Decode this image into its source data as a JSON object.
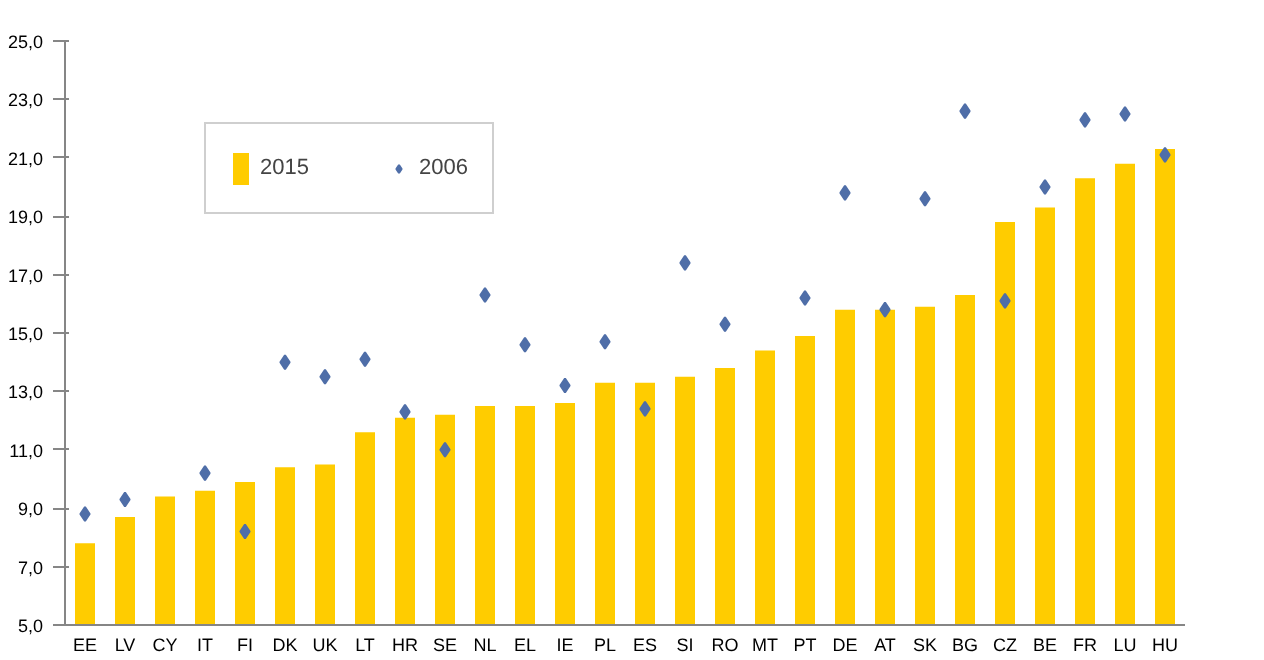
{
  "chart_data": {
    "type": "bar",
    "categories": [
      "EE",
      "LV",
      "CY",
      "IT",
      "FI",
      "DK",
      "UK",
      "LT",
      "HR",
      "SE",
      "NL",
      "EL",
      "IE",
      "PL",
      "ES",
      "SI",
      "RO",
      "MT",
      "PT",
      "DE",
      "AT",
      "SK",
      "BG",
      "CZ",
      "BE",
      "FR",
      "LU",
      "HU"
    ],
    "series": [
      {
        "name": "2015",
        "color": "#ffcc00",
        "values": [
          7.8,
          8.7,
          9.4,
          9.6,
          9.9,
          10.4,
          10.5,
          11.6,
          12.1,
          12.2,
          12.5,
          12.5,
          12.6,
          13.3,
          13.3,
          13.5,
          13.8,
          14.4,
          14.9,
          15.8,
          15.8,
          15.9,
          16.3,
          18.8,
          19.3,
          20.3,
          20.8,
          21.3
        ]
      },
      {
        "name": "2006",
        "type": "scatter",
        "marker": "diamond",
        "color": "#4f6ea8",
        "values": [
          8.8,
          9.3,
          null,
          10.2,
          8.2,
          14.0,
          13.5,
          14.1,
          12.3,
          11.0,
          16.3,
          14.6,
          13.2,
          14.7,
          12.4,
          17.4,
          15.3,
          null,
          16.2,
          19.8,
          15.8,
          19.6,
          22.6,
          16.1,
          20.0,
          22.3,
          22.5,
          21.1
        ]
      }
    ],
    "ylim": [
      5,
      25
    ],
    "yticks": [
      {
        "value": 5,
        "label": "5,0"
      },
      {
        "value": 7,
        "label": "7,0"
      },
      {
        "value": 9,
        "label": "9,0"
      },
      {
        "value": 11,
        "label": "11,0"
      },
      {
        "value": 13,
        "label": "13,0"
      },
      {
        "value": 15,
        "label": "15,0"
      },
      {
        "value": 17,
        "label": "17,0"
      },
      {
        "value": 19,
        "label": "19,0"
      },
      {
        "value": 21,
        "label": "21,0"
      },
      {
        "value": 23,
        "label": "23,0"
      },
      {
        "value": 25,
        "label": "25,0"
      }
    ],
    "grid": false,
    "legend": "top left"
  }
}
